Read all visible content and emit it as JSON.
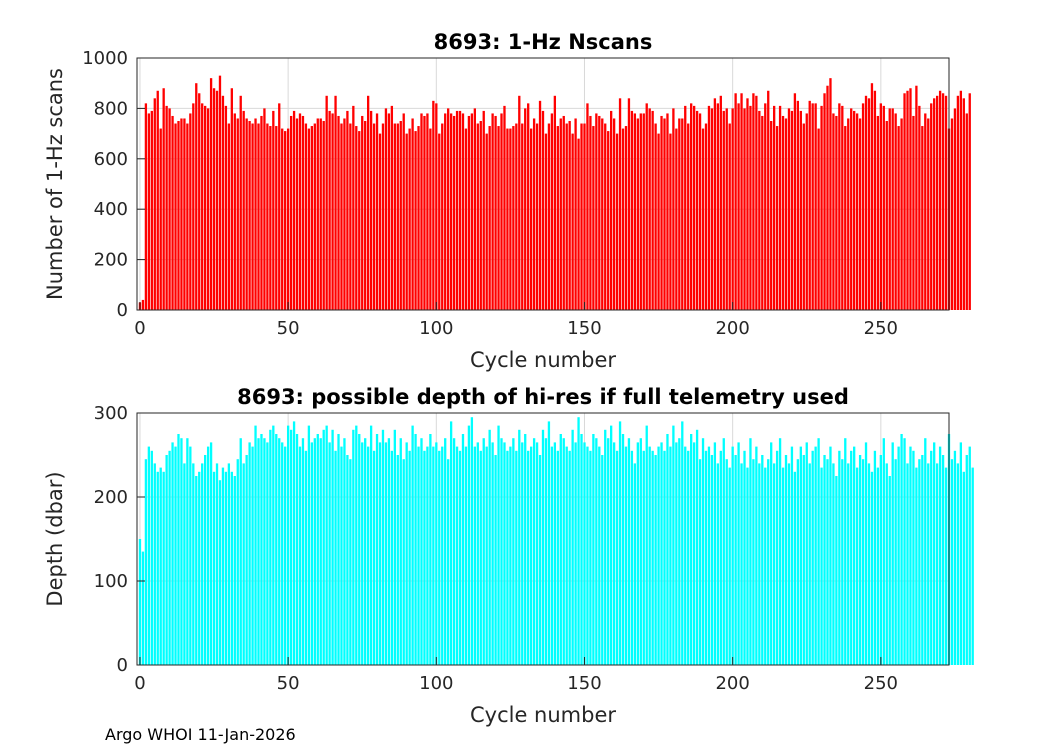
{
  "footer": "Argo WHOI 11-Jan-2026",
  "chart_data": [
    {
      "type": "bar",
      "title": "8693: 1-Hz Nscans",
      "xlabel": "Cycle number",
      "ylabel": "Number of 1-Hz scans",
      "xlim": [
        -1,
        273
      ],
      "ylim": [
        0,
        1000
      ],
      "xticks": [
        "0",
        "50",
        "100",
        "150",
        "200",
        "250"
      ],
      "yticks": [
        "0",
        "200",
        "400",
        "600",
        "800",
        "1000"
      ],
      "grid": true,
      "color": "#ff0000",
      "x_start": 0,
      "values": [
        30,
        40,
        820,
        780,
        790,
        840,
        870,
        720,
        880,
        810,
        800,
        770,
        740,
        750,
        760,
        760,
        740,
        780,
        820,
        900,
        860,
        820,
        810,
        800,
        920,
        880,
        870,
        930,
        850,
        810,
        740,
        880,
        780,
        760,
        850,
        790,
        760,
        750,
        740,
        760,
        740,
        770,
        800,
        740,
        730,
        790,
        730,
        820,
        720,
        710,
        720,
        770,
        790,
        760,
        780,
        770,
        740,
        720,
        730,
        740,
        760,
        760,
        750,
        850,
        790,
        780,
        850,
        770,
        740,
        760,
        790,
        740,
        810,
        730,
        710,
        770,
        750,
        850,
        790,
        740,
        780,
        700,
        740,
        800,
        780,
        810,
        740,
        740,
        750,
        780,
        700,
        720,
        760,
        710,
        730,
        780,
        770,
        780,
        720,
        830,
        820,
        700,
        740,
        780,
        800,
        780,
        770,
        790,
        790,
        780,
        720,
        770,
        780,
        800,
        740,
        750,
        790,
        700,
        730,
        780,
        770,
        730,
        780,
        810,
        720,
        720,
        730,
        740,
        850,
        740,
        800,
        820,
        720,
        760,
        740,
        830,
        790,
        700,
        740,
        780,
        850,
        730,
        760,
        770,
        740,
        750,
        700,
        760,
        680,
        740,
        740,
        820,
        770,
        730,
        780,
        770,
        760,
        740,
        710,
        790,
        760,
        700,
        840,
        720,
        730,
        840,
        790,
        780,
        760,
        780,
        780,
        820,
        800,
        790,
        740,
        700,
        770,
        760,
        780,
        700,
        800,
        720,
        760,
        760,
        810,
        740,
        820,
        810,
        790,
        780,
        720,
        740,
        810,
        800,
        840,
        820,
        850,
        790,
        800,
        740,
        800,
        860,
        820,
        860,
        800,
        840,
        810,
        860,
        850,
        790,
        770,
        820,
        870,
        750,
        810,
        730,
        810,
        770,
        760,
        800,
        790,
        860,
        830,
        790,
        740,
        780,
        830,
        820,
        820,
        720,
        810,
        860,
        890,
        920,
        780,
        770,
        820,
        810,
        730,
        760,
        800,
        790,
        780,
        760,
        820,
        850,
        840,
        900,
        870,
        770,
        820,
        810,
        750,
        800,
        800,
        780,
        730,
        760,
        860,
        870,
        880,
        770,
        890,
        810,
        730,
        780,
        760,
        820,
        840,
        850,
        870,
        860,
        850,
        720,
        760,
        800,
        850,
        870,
        840,
        780,
        860
      ]
    },
    {
      "type": "bar",
      "title": "8693: possible depth of hi-res if full telemetry used",
      "xlabel": "Cycle number",
      "ylabel": "Depth (dbar)",
      "xlim": [
        -1,
        273
      ],
      "ylim": [
        0,
        300
      ],
      "xticks": [
        "0",
        "50",
        "100",
        "150",
        "200",
        "250"
      ],
      "yticks": [
        "0",
        "100",
        "200",
        "300"
      ],
      "grid": true,
      "color": "#00ffff",
      "x_start": 0,
      "values": [
        150,
        135,
        245,
        260,
        255,
        240,
        230,
        235,
        230,
        250,
        255,
        265,
        260,
        275,
        270,
        240,
        270,
        260,
        240,
        225,
        230,
        240,
        250,
        260,
        265,
        230,
        240,
        220,
        235,
        230,
        240,
        230,
        225,
        245,
        270,
        240,
        250,
        265,
        260,
        285,
        270,
        275,
        270,
        265,
        280,
        285,
        275,
        270,
        265,
        260,
        285,
        280,
        290,
        275,
        260,
        270,
        255,
        285,
        265,
        270,
        275,
        270,
        280,
        285,
        265,
        280,
        255,
        275,
        260,
        270,
        250,
        245,
        280,
        285,
        275,
        265,
        270,
        260,
        285,
        255,
        275,
        265,
        280,
        265,
        270,
        255,
        280,
        250,
        270,
        245,
        265,
        255,
        285,
        275,
        260,
        270,
        255,
        260,
        275,
        260,
        265,
        255,
        260,
        270,
        245,
        290,
        270,
        260,
        255,
        275,
        260,
        285,
        295,
        260,
        265,
        255,
        270,
        260,
        280,
        265,
        250,
        285,
        270,
        265,
        255,
        260,
        270,
        255,
        280,
        265,
        275,
        255,
        260,
        270,
        265,
        250,
        280,
        270,
        290,
        260,
        265,
        255,
        275,
        270,
        260,
        255,
        280,
        265,
        295,
        275,
        265,
        260,
        255,
        275,
        270,
        260,
        250,
        280,
        270,
        285,
        265,
        255,
        290,
        275,
        260,
        270,
        255,
        240,
        265,
        270,
        255,
        285,
        260,
        255,
        250,
        260,
        265,
        255,
        275,
        260,
        285,
        265,
        270,
        290,
        260,
        255,
        275,
        265,
        280,
        245,
        270,
        255,
        260,
        250,
        265,
        240,
        255,
        270,
        245,
        235,
        260,
        250,
        265,
        240,
        255,
        235,
        270,
        245,
        260,
        240,
        250,
        235,
        245,
        265,
        240,
        255,
        270,
        235,
        250,
        240,
        260,
        230,
        245,
        260,
        250,
        265,
        240,
        255,
        260,
        270,
        235,
        250,
        245,
        260,
        240,
        225,
        255,
        245,
        270,
        240,
        255,
        260,
        235,
        250,
        245,
        265,
        240,
        230,
        255,
        235,
        250,
        270,
        240,
        225,
        265,
        245,
        260,
        275,
        270,
        240,
        260,
        255,
        235,
        245,
        250,
        270,
        240,
        255,
        265,
        240,
        260,
        250,
        235,
        275,
        245,
        255,
        240,
        265,
        230,
        250,
        260,
        235
      ]
    }
  ]
}
